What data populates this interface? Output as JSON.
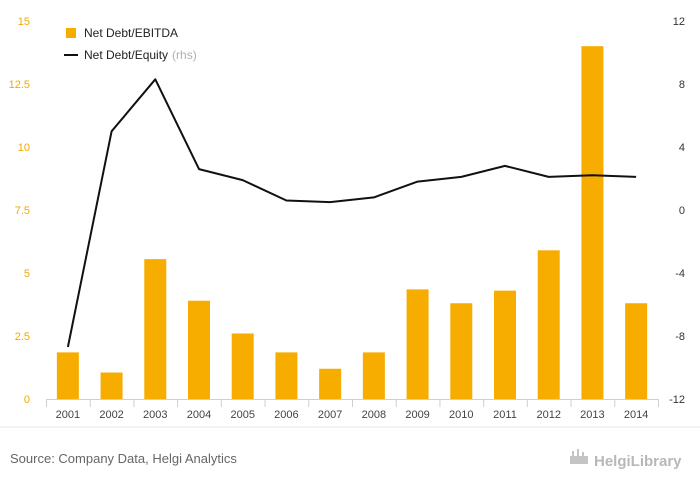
{
  "chart_data": {
    "type": "bar",
    "categories": [
      "2001",
      "2002",
      "2003",
      "2004",
      "2005",
      "2006",
      "2007",
      "2008",
      "2009",
      "2010",
      "2011",
      "2012",
      "2013",
      "2014"
    ],
    "series": [
      {
        "name": "Net Debt/EBITDA",
        "type": "bar",
        "axis": "left",
        "color": "#f7ac00",
        "values": [
          1.85,
          1.05,
          5.55,
          3.9,
          2.6,
          1.85,
          1.2,
          1.85,
          4.35,
          3.8,
          4.3,
          5.9,
          14.0,
          3.8
        ]
      },
      {
        "name": "Net Debt/Equity",
        "name_note": "(rhs)",
        "type": "line",
        "axis": "right",
        "color": "#111111",
        "values": [
          -8.7,
          5.0,
          8.3,
          2.6,
          1.9,
          0.6,
          0.5,
          0.8,
          1.8,
          2.1,
          2.8,
          2.1,
          2.2,
          2.1
        ]
      }
    ],
    "left_axis": {
      "min": 0,
      "max": 15,
      "ticks": [
        "0",
        "2.5",
        "5",
        "7.5",
        "10",
        "12.5",
        "15"
      ],
      "color": "#f2a900"
    },
    "right_axis": {
      "min": -12,
      "max": 12,
      "ticks": [
        "-12",
        "-8",
        "-4",
        "0",
        "4",
        "8",
        "12"
      ]
    },
    "grid": false,
    "legend_position": "top-left"
  },
  "footer": {
    "source": "Source: Company Data, Helgi Analytics",
    "logo": "HelgiLibrary"
  },
  "colors": {
    "bar": "#f7ac00",
    "line": "#111111",
    "left_tick": "#f2a900"
  }
}
